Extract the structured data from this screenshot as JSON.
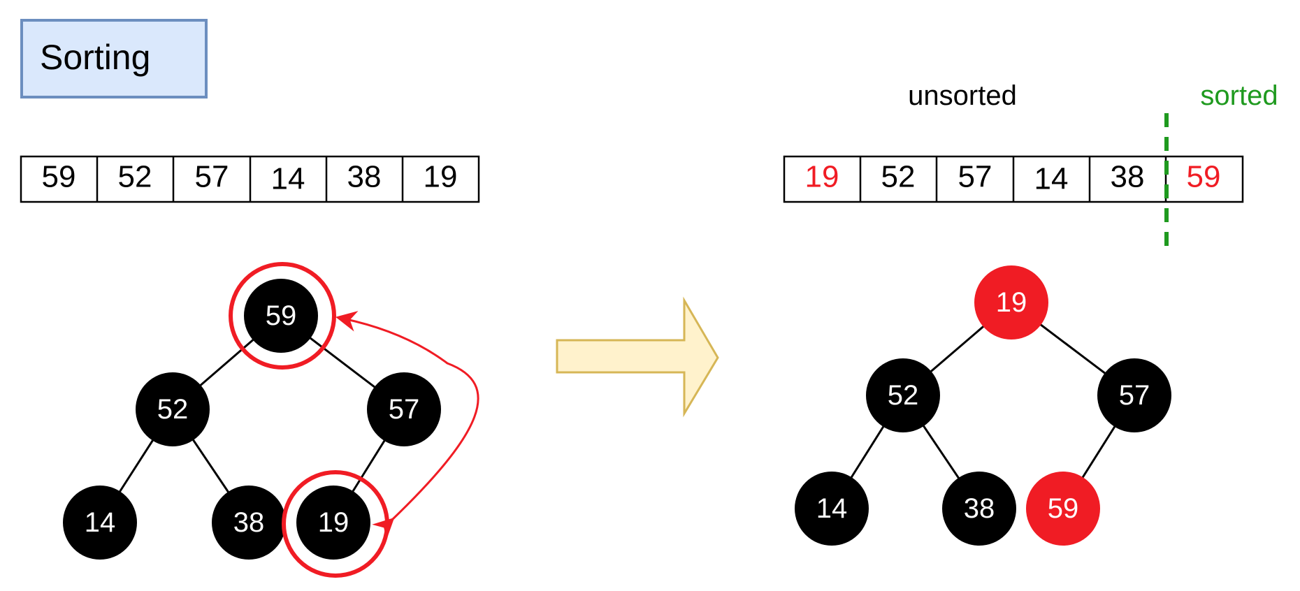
{
  "title": "Sorting",
  "colors": {
    "title_fill": "#dae8fc",
    "title_stroke": "#6c8ebf",
    "node_default": "#000000",
    "highlight": "#f01c24",
    "sorted_green": "#1f9a1f",
    "arrow_fill": "#fff2cc",
    "arrow_stroke": "#d6b656"
  },
  "before": {
    "array": [
      "59",
      "52",
      "57",
      "14",
      "38",
      "19"
    ],
    "tree": {
      "root": "59",
      "left": "52",
      "right": "57",
      "left_left": "14",
      "left_right": "38",
      "right_left": "19"
    }
  },
  "after": {
    "unsorted_label": "unsorted",
    "sorted_label": "sorted",
    "array": [
      "19",
      "52",
      "57",
      "14",
      "38",
      "59"
    ],
    "tree": {
      "root": "19",
      "left": "52",
      "right": "57",
      "left_left": "14",
      "left_right": "38",
      "right_left": "59"
    }
  }
}
